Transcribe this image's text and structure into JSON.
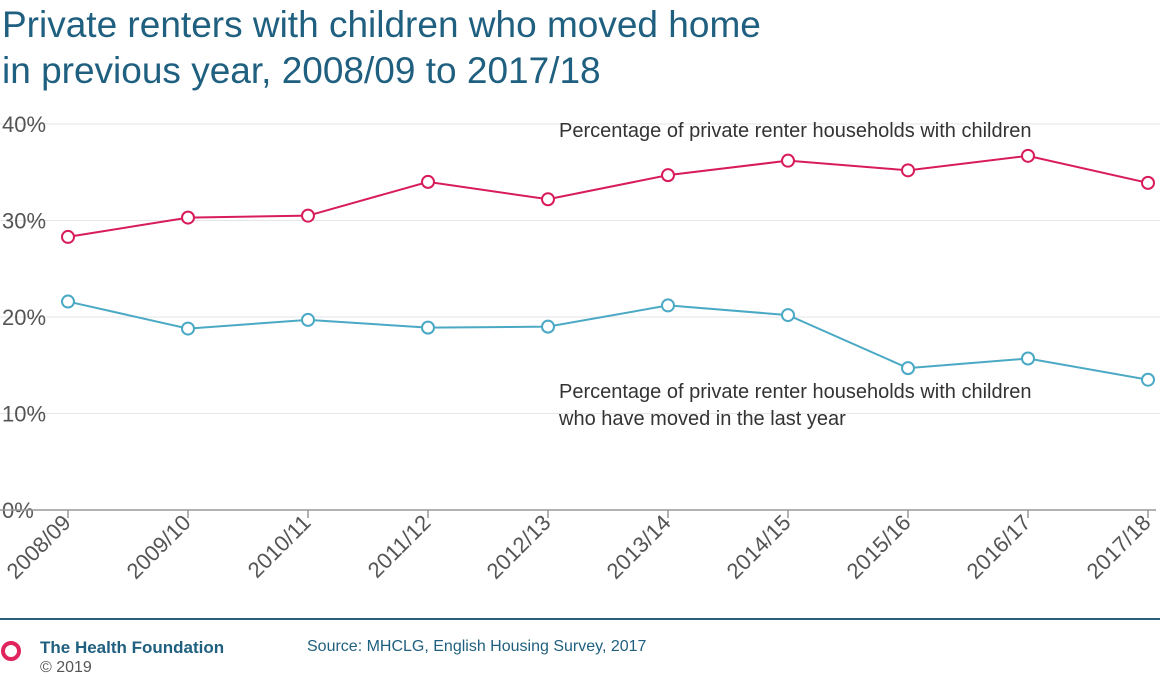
{
  "header": {
    "title_line1": "Private renters with children who moved home",
    "title_line2": "in previous year, 2008/09 to 2017/18"
  },
  "footer": {
    "org_name": "The Health Foundation",
    "copyright": "© 2019",
    "source": "Source: MHCLG, English Housing Survey, 2017"
  },
  "colors": {
    "series_1": "#d81b5b",
    "series_2": "#4aa9c4",
    "gridline": "#e6e6e6",
    "axis": "#999999",
    "title": "#1f5f7f",
    "logo": "#e0245e"
  },
  "chart_data": {
    "type": "line",
    "title": "Private renters with children who moved home in previous year, 2008/09 to 2017/18",
    "xlabel": "",
    "ylabel": "",
    "categories": [
      "2008/09",
      "2009/10",
      "2010/11",
      "2011/12",
      "2012/13",
      "2013/14",
      "2014/15",
      "2015/16",
      "2016/17",
      "2017/18"
    ],
    "ylim": [
      0,
      40
    ],
    "yticks": [
      0,
      10,
      20,
      30,
      40
    ],
    "ytick_labels": [
      "0%",
      "10%",
      "20%",
      "30%",
      "40%"
    ],
    "grid": true,
    "legend": "none",
    "series": [
      {
        "name": "Percentage of private renter households with children",
        "label_lines": [
          "Percentage of private renter households with children"
        ],
        "color": "#d81b5b",
        "values": [
          28.3,
          30.3,
          30.5,
          34.0,
          32.2,
          34.7,
          36.2,
          35.2,
          36.7,
          33.9
        ]
      },
      {
        "name": "Percentage of private renter households with children who have moved in the last year",
        "label_lines": [
          "Percentage of private renter households with children",
          "who have moved in the last year"
        ],
        "color": "#4aa9c4",
        "values": [
          21.6,
          18.8,
          19.7,
          18.9,
          19.0,
          21.2,
          20.2,
          14.7,
          15.7,
          13.5
        ]
      }
    ]
  }
}
